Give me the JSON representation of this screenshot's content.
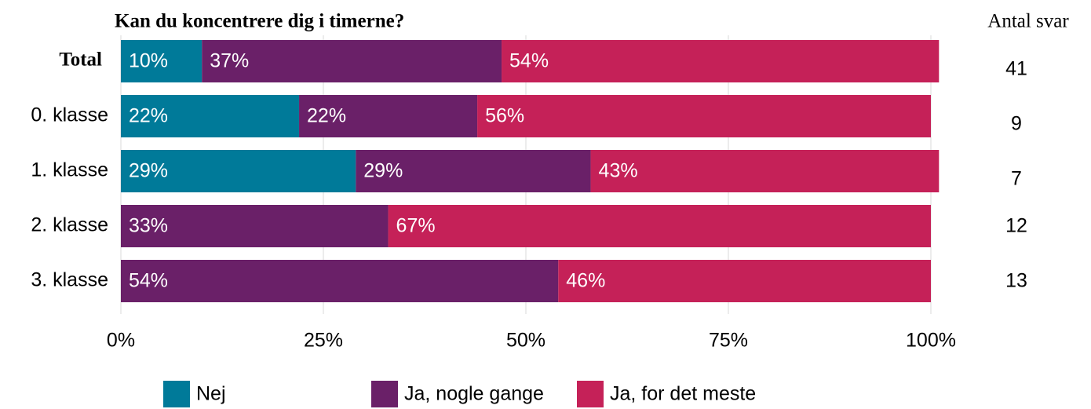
{
  "chart_data": {
    "type": "stacked_barh",
    "title": "Kan du koncentrere dig i timerne?",
    "categories": [
      "Total",
      "0. klasse",
      "1. klasse",
      "2. klasse",
      "3. klasse"
    ],
    "series": [
      {
        "name": "Nej",
        "color": "#007a99",
        "values": [
          10,
          22,
          29,
          0,
          0
        ],
        "value_labels": [
          "10%",
          "22%",
          "29%",
          null,
          null
        ]
      },
      {
        "name": "Ja, nogle gange",
        "color": "#6a2068",
        "values": [
          37,
          22,
          29,
          33,
          54
        ],
        "value_labels": [
          "37%",
          "22%",
          "29%",
          "33%",
          "54%"
        ]
      },
      {
        "name": "Ja, for det meste",
        "color": "#c52158",
        "values": [
          54,
          56,
          43,
          67,
          46
        ],
        "value_labels": [
          "54%",
          "56%",
          "43%",
          "67%",
          "46%"
        ]
      }
    ],
    "xlim": [
      0,
      100
    ],
    "xticks": [
      {
        "value": 0,
        "label": "0%"
      },
      {
        "value": 25,
        "label": "25%"
      },
      {
        "value": 50,
        "label": "50%"
      },
      {
        "value": 75,
        "label": "75%"
      },
      {
        "value": 100,
        "label": "100%"
      }
    ],
    "grid": true,
    "responses": {
      "title": "Antal svar",
      "values": [
        41,
        9,
        7,
        12,
        13
      ]
    }
  }
}
